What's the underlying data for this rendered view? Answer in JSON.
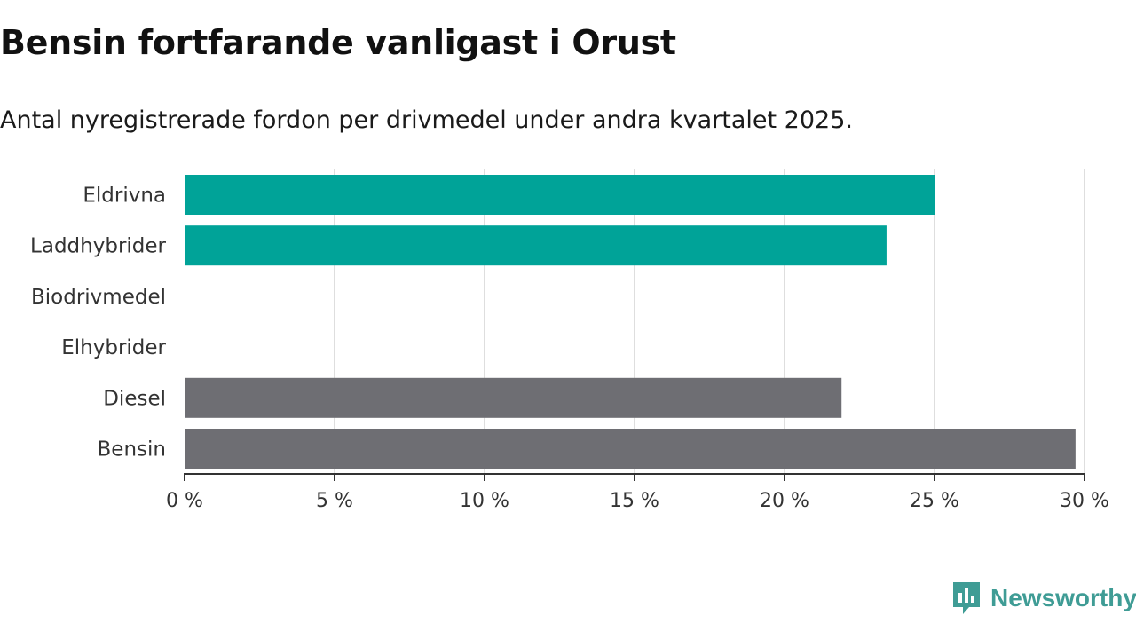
{
  "title": "Bensin fortfarande vanligast i Orust",
  "subtitle": "Antal nyregistrerade fordon per drivmedel under andra kvartalet 2025.",
  "logo": {
    "text": "Newsworthy",
    "color": "#3f9c95"
  },
  "chart_data": {
    "type": "bar",
    "orientation": "horizontal",
    "categories": [
      "Eldrivna",
      "Laddhybrider",
      "Biodrivmedel",
      "Elhybrider",
      "Diesel",
      "Bensin"
    ],
    "values": [
      25.0,
      23.4,
      0,
      0,
      21.9,
      29.7
    ],
    "colors": [
      "#00a398",
      "#00a398",
      "#00a398",
      "#00a398",
      "#6e6e73",
      "#6e6e73"
    ],
    "xlim": [
      0,
      30
    ],
    "xticks": [
      0,
      5,
      10,
      15,
      20,
      25,
      30
    ],
    "xtick_labels": [
      "0 %",
      "5 %",
      "10 %",
      "15 %",
      "20 %",
      "25 %",
      "30 %"
    ],
    "grid": true,
    "xlabel": "",
    "ylabel": ""
  }
}
